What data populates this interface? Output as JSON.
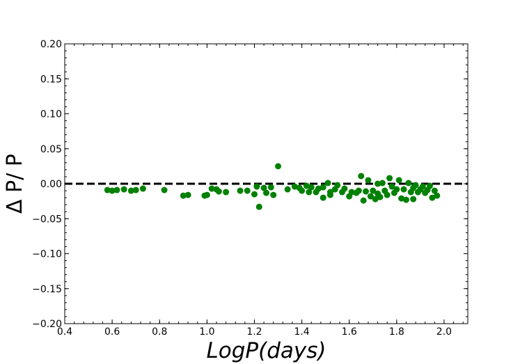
{
  "chart_data": {
    "type": "scatter",
    "title": "",
    "xlabel": "LogP(days)",
    "ylabel": "Δ P/ P",
    "xlim": [
      0.4,
      2.1
    ],
    "ylim": [
      -0.2,
      0.2
    ],
    "x_ticks": [
      "0.4",
      "0.6",
      "0.8",
      "1.0",
      "1.2",
      "1.4",
      "1.6",
      "1.8",
      "2.0"
    ],
    "y_ticks": [
      "0.20",
      "0.15",
      "0.10",
      "0.05",
      "0.00",
      "−0.05",
      "−0.10",
      "−0.15",
      "−0.20"
    ],
    "reference_line": {
      "y": 0.0,
      "style": "dashed",
      "color": "#000000"
    },
    "grid": false,
    "marker_color": "#008000",
    "points": [
      {
        "x": 0.58,
        "y": -0.009
      },
      {
        "x": 0.6,
        "y": -0.01
      },
      {
        "x": 0.62,
        "y": -0.009
      },
      {
        "x": 0.65,
        "y": -0.008
      },
      {
        "x": 0.68,
        "y": -0.01
      },
      {
        "x": 0.7,
        "y": -0.009
      },
      {
        "x": 0.73,
        "y": -0.007
      },
      {
        "x": 0.82,
        "y": -0.009
      },
      {
        "x": 0.9,
        "y": -0.017
      },
      {
        "x": 0.92,
        "y": -0.016
      },
      {
        "x": 0.99,
        "y": -0.017
      },
      {
        "x": 1.0,
        "y": -0.016
      },
      {
        "x": 1.02,
        "y": -0.007
      },
      {
        "x": 1.04,
        "y": -0.008
      },
      {
        "x": 1.05,
        "y": -0.011
      },
      {
        "x": 1.08,
        "y": -0.012
      },
      {
        "x": 1.14,
        "y": -0.01
      },
      {
        "x": 1.17,
        "y": -0.01
      },
      {
        "x": 1.2,
        "y": -0.015
      },
      {
        "x": 1.21,
        "y": -0.004
      },
      {
        "x": 1.22,
        "y": -0.033
      },
      {
        "x": 1.24,
        "y": -0.006
      },
      {
        "x": 1.25,
        "y": -0.013
      },
      {
        "x": 1.27,
        "y": -0.005
      },
      {
        "x": 1.28,
        "y": -0.016
      },
      {
        "x": 1.3,
        "y": 0.025
      },
      {
        "x": 1.34,
        "y": -0.008
      },
      {
        "x": 1.37,
        "y": -0.004
      },
      {
        "x": 1.39,
        "y": -0.006
      },
      {
        "x": 1.4,
        "y": -0.01
      },
      {
        "x": 1.42,
        "y": -0.003
      },
      {
        "x": 1.43,
        "y": -0.012
      },
      {
        "x": 1.44,
        "y": -0.005
      },
      {
        "x": 1.46,
        "y": -0.012
      },
      {
        "x": 1.47,
        "y": -0.007
      },
      {
        "x": 1.49,
        "y": -0.005
      },
      {
        "x": 1.49,
        "y": -0.02
      },
      {
        "x": 1.51,
        "y": 0.001
      },
      {
        "x": 1.52,
        "y": -0.012
      },
      {
        "x": 1.52,
        "y": -0.016
      },
      {
        "x": 1.54,
        "y": -0.008
      },
      {
        "x": 1.55,
        "y": -0.002
      },
      {
        "x": 1.57,
        "y": -0.012
      },
      {
        "x": 1.58,
        "y": -0.007
      },
      {
        "x": 1.6,
        "y": -0.018
      },
      {
        "x": 1.61,
        "y": -0.012
      },
      {
        "x": 1.63,
        "y": -0.013
      },
      {
        "x": 1.64,
        "y": -0.01
      },
      {
        "x": 1.65,
        "y": 0.011
      },
      {
        "x": 1.66,
        "y": -0.024
      },
      {
        "x": 1.67,
        "y": -0.011
      },
      {
        "x": 1.68,
        "y": 0.005
      },
      {
        "x": 1.69,
        "y": -0.018
      },
      {
        "x": 1.7,
        "y": -0.01
      },
      {
        "x": 1.71,
        "y": -0.022
      },
      {
        "x": 1.72,
        "y": 0.0
      },
      {
        "x": 1.72,
        "y": -0.014
      },
      {
        "x": 1.73,
        "y": -0.019
      },
      {
        "x": 1.74,
        "y": 0.001
      },
      {
        "x": 1.75,
        "y": -0.01
      },
      {
        "x": 1.76,
        "y": -0.016
      },
      {
        "x": 1.77,
        "y": 0.008
      },
      {
        "x": 1.78,
        "y": -0.004
      },
      {
        "x": 1.79,
        "y": -0.013
      },
      {
        "x": 1.8,
        "y": -0.008
      },
      {
        "x": 1.81,
        "y": 0.005
      },
      {
        "x": 1.82,
        "y": -0.021
      },
      {
        "x": 1.83,
        "y": -0.008
      },
      {
        "x": 1.84,
        "y": -0.023
      },
      {
        "x": 1.85,
        "y": 0.001
      },
      {
        "x": 1.86,
        "y": -0.012
      },
      {
        "x": 1.87,
        "y": -0.022
      },
      {
        "x": 1.87,
        "y": -0.006
      },
      {
        "x": 1.88,
        "y": -0.002
      },
      {
        "x": 1.89,
        "y": -0.012
      },
      {
        "x": 1.9,
        "y": -0.008
      },
      {
        "x": 1.91,
        "y": -0.004
      },
      {
        "x": 1.92,
        "y": -0.013
      },
      {
        "x": 1.93,
        "y": -0.009
      },
      {
        "x": 1.94,
        "y": -0.003
      },
      {
        "x": 1.95,
        "y": -0.02
      },
      {
        "x": 1.96,
        "y": -0.01
      },
      {
        "x": 1.97,
        "y": -0.017
      }
    ]
  }
}
